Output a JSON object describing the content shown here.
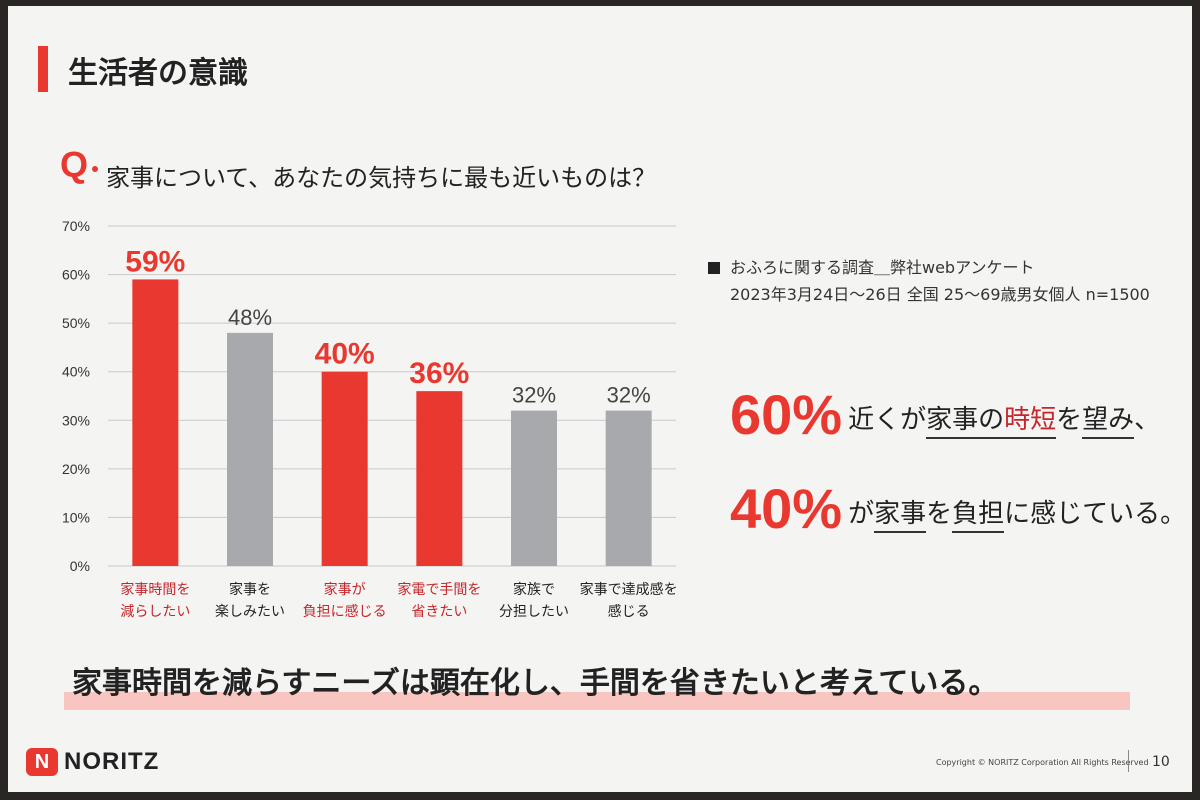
{
  "slide": {
    "title": "生活者の意識",
    "q_label": "Q",
    "question": "家事について、あなたの気持ちに最も近いものは？"
  },
  "note": {
    "line1": "おふろに関する調査＿弊社webアンケート",
    "line2": "2023年3月24日～26日 全国 25～69歳男女個人 n=1500"
  },
  "highlights": [
    {
      "pct": "60%",
      "before": "近くが",
      "u1": "家事の",
      "u1_red": "時短",
      "mid": "を",
      "u2": "望み",
      "after": "、"
    },
    {
      "pct": "40%",
      "before": "が",
      "u1": "家事",
      "mid": "を",
      "u2": "負担",
      "after": "に感じている。"
    }
  ],
  "conclusion": "家事時間を減らすニーズは顕在化し、手間を省きたいと考えている。",
  "footer": {
    "logo_mark": "N",
    "logo_text": "NORITZ",
    "copyright": "Copyright © NORITZ Corporation All Rights Reserved",
    "page": "10"
  },
  "colors": {
    "accent": "#e8382f",
    "gray_bar": "#a7a9ac",
    "red_label": "#c4262b"
  },
  "chart_data": {
    "type": "bar",
    "ylim": [
      0,
      70
    ],
    "yticks": [
      0,
      10,
      20,
      30,
      40,
      50,
      60,
      70
    ],
    "ytick_labels": [
      "0%",
      "10%",
      "20%",
      "30%",
      "40%",
      "50%",
      "60%",
      "70%"
    ],
    "grid": true,
    "categories": [
      [
        "家事時間を",
        "減らしたい"
      ],
      [
        "家事を",
        "楽しみたい"
      ],
      [
        "家事が",
        "負担に感じる"
      ],
      [
        "家電で手間を",
        "省きたい"
      ],
      [
        "家族で",
        "分担したい"
      ],
      [
        "家事で達成感を",
        "感じる"
      ]
    ],
    "values": [
      59,
      48,
      40,
      36,
      32,
      32
    ],
    "value_labels": [
      "59%",
      "48%",
      "40%",
      "36%",
      "32%",
      "32%"
    ],
    "highlighted": [
      true,
      false,
      true,
      true,
      false,
      false
    ]
  }
}
